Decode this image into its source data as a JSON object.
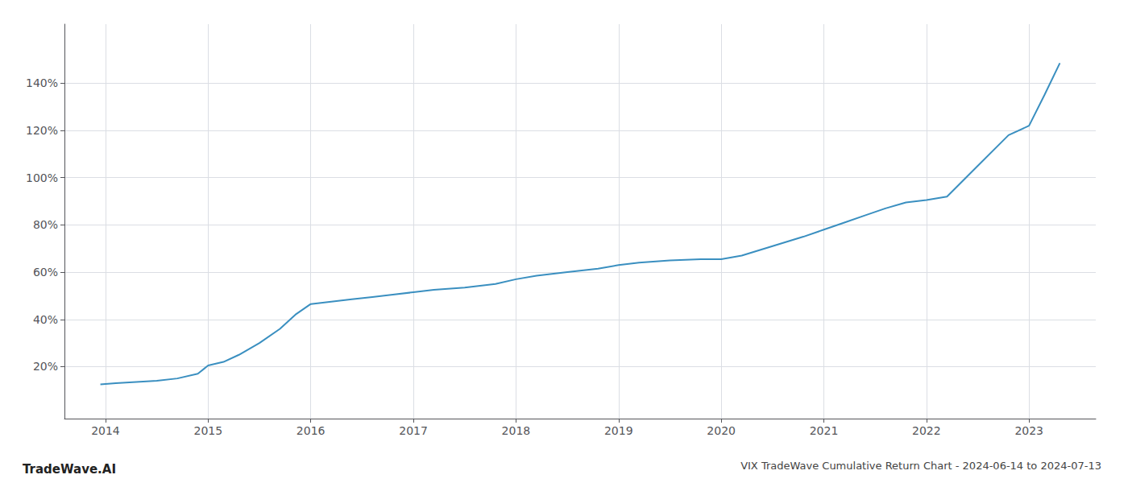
{
  "chart_data": {
    "type": "line",
    "title": "VIX TradeWave Cumulative Return Chart - 2024-06-14 to 2024-07-13",
    "annotations": [
      "TradeWave.AI"
    ],
    "color": "#3a8fc0",
    "x": [
      2013.95,
      2014.1,
      2014.3,
      2014.5,
      2014.7,
      2014.9,
      2015.0,
      2015.15,
      2015.3,
      2015.5,
      2015.7,
      2015.85,
      2016.0,
      2016.1,
      2016.2,
      2016.4,
      2016.6,
      2016.8,
      2017.0,
      2017.2,
      2017.5,
      2017.8,
      2018.0,
      2018.2,
      2018.5,
      2018.8,
      2019.0,
      2019.2,
      2019.5,
      2019.8,
      2020.0,
      2020.2,
      2020.5,
      2020.8,
      2021.0,
      2021.2,
      2021.4,
      2021.6,
      2021.8,
      2022.0,
      2022.2,
      2022.5,
      2022.8,
      2023.0,
      2023.15,
      2023.3
    ],
    "values": [
      12.5,
      13.0,
      13.5,
      14.0,
      15.0,
      17.0,
      20.5,
      22.0,
      25.0,
      30.0,
      36.0,
      42.0,
      46.5,
      47.0,
      47.5,
      48.5,
      49.5,
      50.5,
      51.5,
      52.5,
      53.5,
      55.0,
      57.0,
      58.5,
      60.0,
      61.5,
      63.0,
      64.0,
      65.0,
      65.5,
      65.5,
      67.0,
      71.0,
      75.0,
      78.0,
      81.0,
      84.0,
      87.0,
      89.5,
      90.5,
      92.0,
      105.0,
      118.0,
      122.0,
      135.0,
      148.5
    ],
    "xlim": [
      2013.6,
      2023.65
    ],
    "ylim": [
      -2,
      165
    ],
    "xticks": [
      2014,
      2015,
      2016,
      2017,
      2018,
      2019,
      2020,
      2021,
      2022,
      2023
    ],
    "yticks": [
      {
        "value": 20,
        "label": "20%"
      },
      {
        "value": 40,
        "label": "40%"
      },
      {
        "value": 60,
        "label": "60%"
      },
      {
        "value": 80,
        "label": "80%"
      },
      {
        "value": 100,
        "label": "100%"
      },
      {
        "value": 120,
        "label": "120%"
      },
      {
        "value": 140,
        "label": "140%"
      }
    ],
    "grid": true
  }
}
